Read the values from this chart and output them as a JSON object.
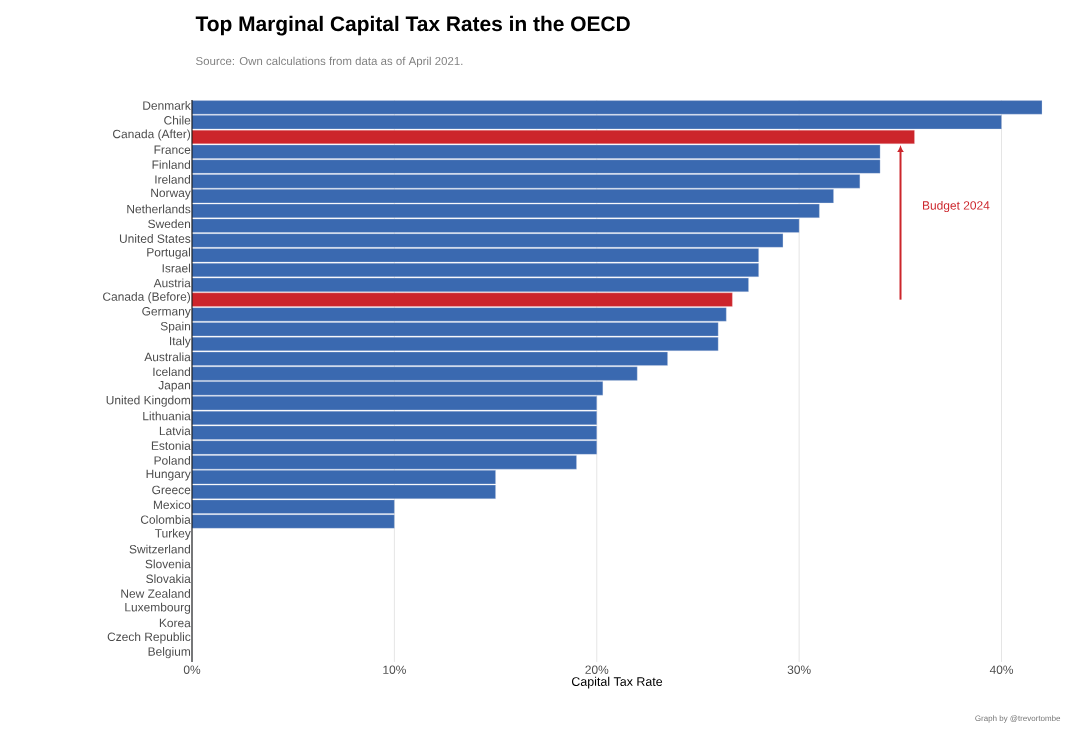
{
  "chart_data": {
    "type": "bar",
    "orientation": "horizontal",
    "title": "Top Marginal Capital Tax Rates in the OECD",
    "subtitle": "Source: Own calculations from data as of April 2021.",
    "xlabel": "Capital Tax Rate",
    "categories": [
      "Denmark",
      "Chile",
      "Canada (After)",
      "France",
      "Finland",
      "Ireland",
      "Norway",
      "Netherlands",
      "Sweden",
      "United States",
      "Portugal",
      "Israel",
      "Austria",
      "Canada (Before)",
      "Germany",
      "Spain",
      "Italy",
      "Australia",
      "Iceland",
      "Japan",
      "United Kingdom",
      "Lithuania",
      "Latvia",
      "Estonia",
      "Poland",
      "Hungary",
      "Greece",
      "Mexico",
      "Colombia",
      "Turkey",
      "Switzerland",
      "Slovenia",
      "Slovakia",
      "New Zealand",
      "Luxembourg",
      "Korea",
      "Czech Republic",
      "Belgium"
    ],
    "values": [
      42,
      40,
      35.7,
      34,
      34,
      33,
      31.7,
      31,
      30,
      29.2,
      28,
      28,
      27.5,
      26.7,
      26.4,
      26,
      26,
      23.5,
      22,
      20.3,
      20,
      20,
      20,
      20,
      19,
      15,
      15,
      10,
      10,
      0,
      0,
      0,
      0,
      0,
      0,
      0,
      0,
      0
    ],
    "colors": [
      "#3a69b0",
      "#3a69b0",
      "#cc252b",
      "#3a69b0",
      "#3a69b0",
      "#3a69b0",
      "#3a69b0",
      "#3a69b0",
      "#3a69b0",
      "#3a69b0",
      "#3a69b0",
      "#3a69b0",
      "#3a69b0",
      "#cc252b",
      "#3a69b0",
      "#3a69b0",
      "#3a69b0",
      "#3a69b0",
      "#3a69b0",
      "#3a69b0",
      "#3a69b0",
      "#3a69b0",
      "#3a69b0",
      "#3a69b0",
      "#3a69b0",
      "#3a69b0",
      "#3a69b0",
      "#3a69b0",
      "#3a69b0",
      "#3a69b0",
      "#3a69b0",
      "#3a69b0",
      "#3a69b0",
      "#3a69b0",
      "#3a69b0",
      "#3a69b0",
      "#3a69b0",
      "#3a69b0"
    ],
    "xticks": [
      {
        "value": 0,
        "label": "0%"
      },
      {
        "value": 10,
        "label": "10%"
      },
      {
        "value": 20,
        "label": "20%"
      },
      {
        "value": 30,
        "label": "30%"
      },
      {
        "value": 40,
        "label": "40%"
      }
    ],
    "xlim": [
      0,
      42
    ],
    "grid": "x",
    "annotations": [
      "Budget 2024",
      "Graph by @trevortombe"
    ]
  }
}
